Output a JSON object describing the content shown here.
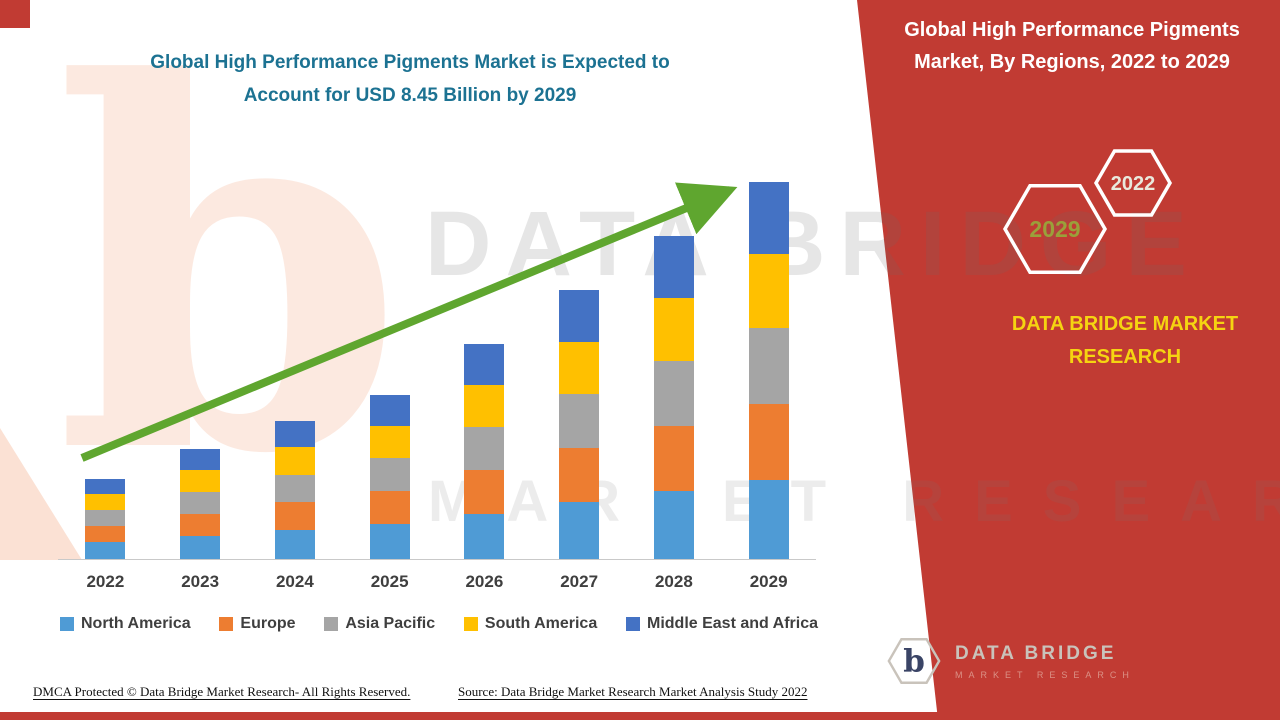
{
  "header": {
    "title_line1": "Global High Performance Pigments Market is Expected to",
    "title_line2": "Account for USD 8.45 Billion by 2029"
  },
  "right_panel": {
    "heading_line1": "Global High Performance Pigments",
    "heading_line2": "Market, By Regions, 2022 to 2029",
    "badge_2022": "2022",
    "badge_2029": "2029",
    "brand_line1": "DATA BRIDGE MARKET",
    "brand_line2": "RESEARCH",
    "logo_text": "DATA BRIDGE",
    "logo_tagline": "MARKET RESEARCH",
    "logo_letter": "b"
  },
  "watermark": {
    "line1": "DATA BRIDGE",
    "line2": "MARKET RESEARCH",
    "logo_letter": "b"
  },
  "footer": {
    "dmca": "DMCA Protected © Data Bridge Market Research- All Rights Reserved.",
    "source": "Source: Data Bridge Market Research Market Analysis Study 2022"
  },
  "colors": {
    "accent_red": "#C13B33",
    "title_teal": "#1C7292",
    "brand_yellow": "#F5D411",
    "arrow_green": "#5FA62F",
    "north_america": "#4F9BD5",
    "europe": "#ED7D31",
    "asia_pacific": "#A5A5A5",
    "south_america": "#FFC000",
    "middle_east_africa": "#4472C4"
  },
  "icons": {
    "trend-arrow-icon": "↗",
    "hexagon-badge-icon": "⬡",
    "logo-hexagon-icon": "⬡"
  },
  "chart_data": {
    "type": "bar",
    "stacked": true,
    "title": "Global High Performance Pigments Market, By Regions, 2022 to 2029",
    "xlabel": "",
    "ylabel": "",
    "ylim": [
      0,
      8.45
    ],
    "grid": false,
    "y_axis_visible": false,
    "trend_arrow": true,
    "legend_position": "bottom",
    "categories": [
      "2022",
      "2023",
      "2024",
      "2025",
      "2026",
      "2027",
      "2028",
      "2029"
    ],
    "series": [
      {
        "name": "North America",
        "color": "#4F9BD5",
        "values": [
          0.38,
          0.52,
          0.65,
          0.78,
          1.02,
          1.27,
          1.53,
          1.78
        ]
      },
      {
        "name": "Europe",
        "color": "#ED7D31",
        "values": [
          0.36,
          0.5,
          0.62,
          0.74,
          0.97,
          1.21,
          1.45,
          1.7
        ]
      },
      {
        "name": "Asia Pacific",
        "color": "#A5A5A5",
        "values": [
          0.36,
          0.49,
          0.62,
          0.74,
          0.96,
          1.21,
          1.45,
          1.69
        ]
      },
      {
        "name": "South America",
        "color": "#FFC000",
        "values": [
          0.35,
          0.48,
          0.61,
          0.72,
          0.95,
          1.18,
          1.42,
          1.66
        ]
      },
      {
        "name": "Middle East and Africa",
        "color": "#4472C4",
        "values": [
          0.34,
          0.47,
          0.59,
          0.7,
          0.92,
          1.16,
          1.39,
          1.62
        ]
      }
    ],
    "totals": [
      1.79,
      2.46,
      3.09,
      3.68,
      4.82,
      6.03,
      7.24,
      8.45
    ]
  }
}
